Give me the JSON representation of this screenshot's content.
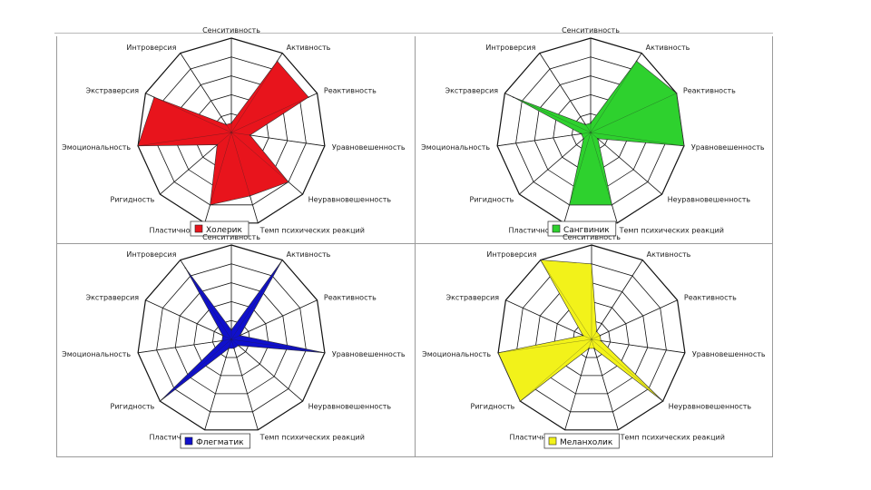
{
  "chart_data": [
    {
      "type": "radar",
      "axes": [
        "Сенситивность",
        "Активность",
        "Реактивность",
        "Уравновешенность",
        "Неуравновешенность",
        "Темп психических реакций",
        "Пластичность",
        "Ригидность",
        "Эмоциональность",
        "Экстраверсия",
        "Интроверсия"
      ],
      "series": [
        {
          "name": "Холерик",
          "values": [
            1,
            9,
            9,
            2,
            8,
            7,
            8,
            2,
            10,
            9,
            1
          ]
        }
      ],
      "scale_max": 10,
      "color": "#e8141c",
      "legend_placement": "bottom"
    },
    {
      "type": "radar",
      "axes": [
        "Сенситивность",
        "Активность",
        "Реактивность",
        "Уравновешенность",
        "Неуравновешенность",
        "Темп психических реакций",
        "Пластичность",
        "Ригидность",
        "Эмоциональность",
        "Экстраверсия",
        "Интроверсия"
      ],
      "series": [
        {
          "name": "Сангвиник",
          "values": [
            1,
            9,
            10,
            10,
            1,
            8,
            8,
            1,
            1,
            9,
            1
          ]
        }
      ],
      "scale_max": 10,
      "color": "#2ed12e",
      "legend_placement": "bottom"
    },
    {
      "type": "radar",
      "axes": [
        "Сенситивность",
        "Активность",
        "Реактивность",
        "Уравновешенность",
        "Неуравновешенность",
        "Темп психических реакций",
        "Пластичность",
        "Ригидность",
        "Эмоциональность",
        "Экстраверсия",
        "Интроверсия"
      ],
      "series": [
        {
          "name": "Флегматик",
          "values": [
            1,
            10,
            1,
            10,
            1,
            1,
            1,
            10,
            1,
            1,
            9
          ]
        }
      ],
      "scale_max": 10,
      "color": "#1010cc",
      "legend_placement": "bottom"
    },
    {
      "type": "radar",
      "axes": [
        "Сенситивность",
        "Активность",
        "Реактивность",
        "Уравновешенность",
        "Неуравновешенность",
        "Темп психических реакций",
        "Пластичность",
        "Ригидность",
        "Эмоциональность",
        "Экстраверсия",
        "Интроверсия"
      ],
      "series": [
        {
          "name": "Меланхолик",
          "values": [
            8,
            1,
            1,
            1,
            10,
            1,
            1,
            10,
            10,
            1,
            10
          ]
        }
      ],
      "scale_max": 10,
      "color": "#f2f21a",
      "legend_placement": "bottom"
    }
  ]
}
